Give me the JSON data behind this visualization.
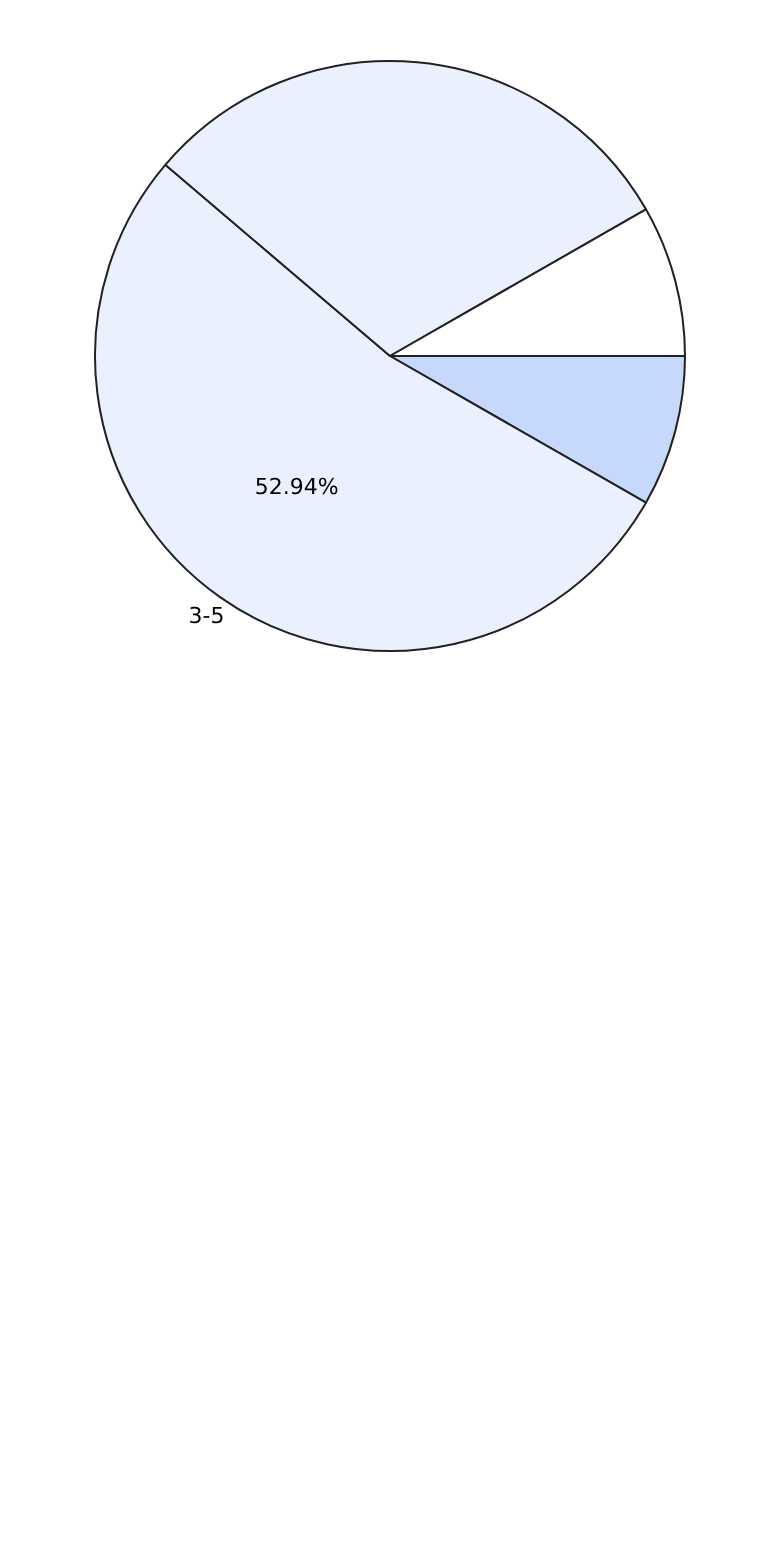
{
  "chart_data": {
    "type": "pie",
    "categories": [
      null,
      "3-5",
      null,
      null
    ],
    "values": [
      8.28,
      52.94,
      30.5,
      8.28
    ],
    "colors": [
      "#c6d9fc",
      "#eaf0fd",
      "#eaf0fd",
      "#ffffff"
    ],
    "value_labels": [
      null,
      "52.94%",
      null,
      null
    ],
    "legend": false
  }
}
